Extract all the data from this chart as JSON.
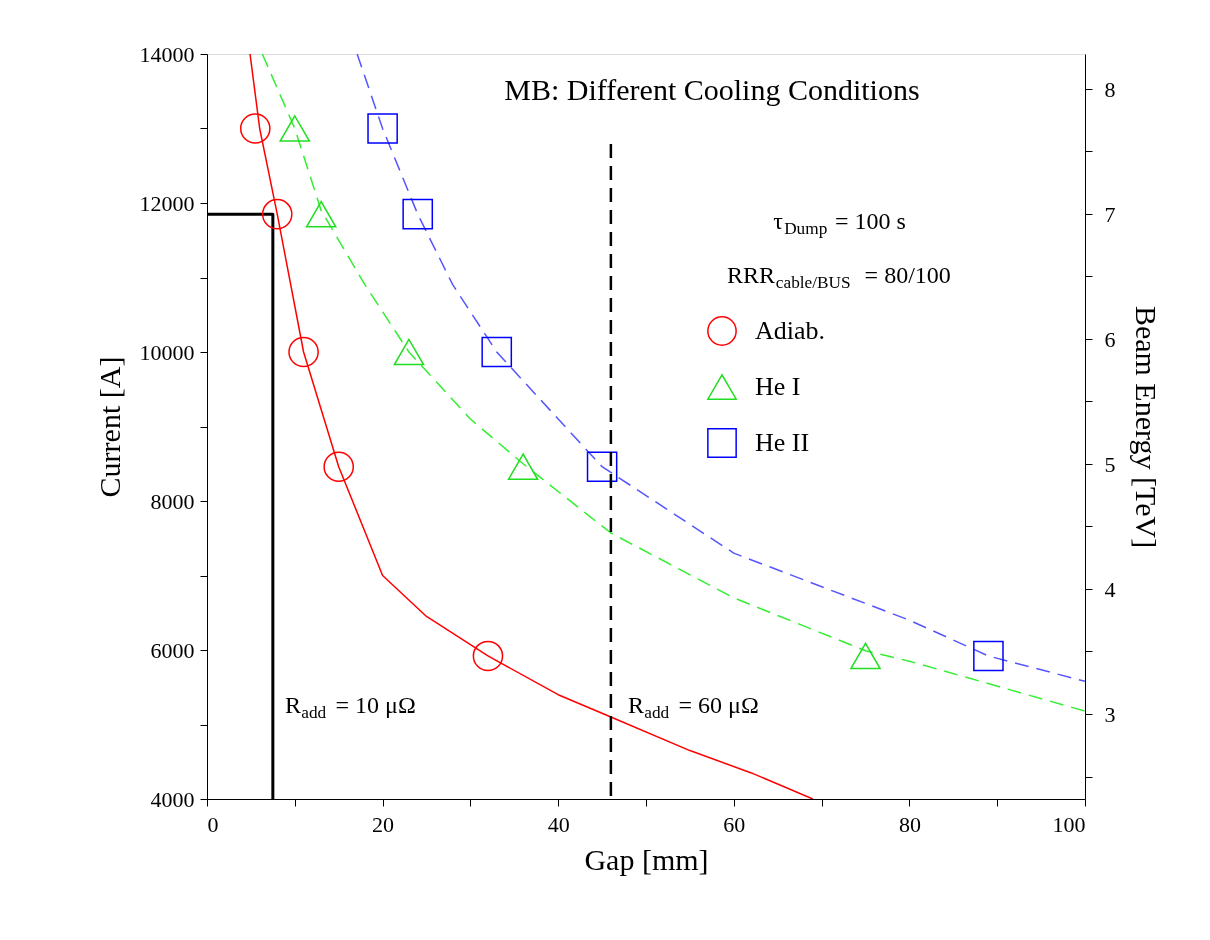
{
  "chart_data": {
    "type": "scatter",
    "title": "MB: Different Cooling Conditions",
    "xlabel": "Gap [mm]",
    "ylabel": "Current [A]",
    "y2label": "Beam Energy [TeV]",
    "xlim": [
      0,
      100
    ],
    "xticks": [
      0,
      {
        "value": 10,
        "label": null
      },
      20,
      {
        "value": 30,
        "label": null
      },
      40,
      {
        "value": 50,
        "label": null
      },
      60,
      {
        "value": 70,
        "label": null
      },
      80,
      {
        "value": 90,
        "label": null
      },
      100
    ],
    "ylim": [
      4000,
      14000
    ],
    "yticks": [
      4000,
      {
        "value": 5000,
        "label": null
      },
      6000,
      {
        "value": 7000,
        "label": null
      },
      8000,
      {
        "value": 9000,
        "label": null
      },
      10000,
      {
        "value": 11000,
        "label": null
      },
      12000,
      {
        "value": 13000,
        "label": null
      },
      14000
    ],
    "y2lim": [
      2.32,
      8.28
    ],
    "y2ticks": [
      {
        "value": 2.5,
        "label": null
      },
      3,
      {
        "value": 3.5,
        "label": null
      },
      4,
      {
        "value": 4.5,
        "label": null
      },
      5,
      {
        "value": 5.5,
        "label": null
      },
      6,
      {
        "value": 6.5,
        "label": null
      },
      7,
      {
        "value": 7.5,
        "label": null
      },
      8
    ],
    "grid": false,
    "legend": "top right",
    "series": [
      {
        "type": "line",
        "color": "#ff0000",
        "line_style": "solid",
        "marker": "none",
        "x": [
          4.9,
          6,
          8,
          11,
          15,
          20,
          25,
          32,
          40,
          46,
          55,
          62,
          69
        ],
        "values": [
          14000,
          13000,
          11850,
          10000,
          8460,
          7000,
          6450,
          5920,
          5400,
          5100,
          4650,
          4350,
          4000
        ]
      },
      {
        "type": "line",
        "color": "#33ee33",
        "line_style": "dashed",
        "marker": "none",
        "x": [
          6.3,
          10,
          13,
          18,
          23,
          30,
          36,
          46,
          60,
          75,
          80,
          100
        ],
        "values": [
          14000,
          13000,
          11900,
          10900,
          10000,
          9100,
          8500,
          7570,
          6700,
          5990,
          5850,
          5180
        ]
      },
      {
        "type": "line",
        "color": "#5555ff",
        "line_style": "dashed",
        "marker": "none",
        "x": [
          17.1,
          20,
          24,
          28,
          33,
          40,
          45,
          60,
          80,
          89,
          100
        ],
        "values": [
          14000,
          13000,
          11850,
          10900,
          10000,
          9100,
          8460,
          7300,
          6400,
          5920,
          5580
        ]
      },
      {
        "type": "line",
        "color": "#000000",
        "line_style": "solid",
        "marker": "none",
        "x": [
          0,
          7.5,
          7.5
        ],
        "values": [
          11850,
          11850,
          4000
        ]
      },
      {
        "name": "Adiab.",
        "color": "#ff0000",
        "marker": "circle",
        "x": [
          5.5,
          8,
          11,
          15,
          32
        ],
        "values": [
          13000,
          11850,
          10000,
          8460,
          5920
        ]
      },
      {
        "name": "He I",
        "color": "#22dd22",
        "marker": "triangle",
        "x": [
          10,
          13,
          23,
          36,
          75
        ],
        "values": [
          13000,
          11850,
          10000,
          8460,
          5920
        ]
      },
      {
        "name": "He II",
        "color": "#0000ff",
        "marker": "square",
        "x": [
          20,
          24,
          33,
          45,
          89
        ],
        "values": [
          13000,
          11850,
          10000,
          8460,
          5920
        ]
      }
    ],
    "ref_lines": [
      {
        "axis": "x",
        "value": 46,
        "color": "#000000",
        "line_style": "dashed"
      }
    ],
    "annotations": [
      "τ$_{Dump}$ = 100 s",
      "RRR$_{cable/BUS}$ = 80/100",
      "R$_{add}$ = 10 μΩ",
      "R$_{add}$ = 60 μΩ"
    ]
  }
}
